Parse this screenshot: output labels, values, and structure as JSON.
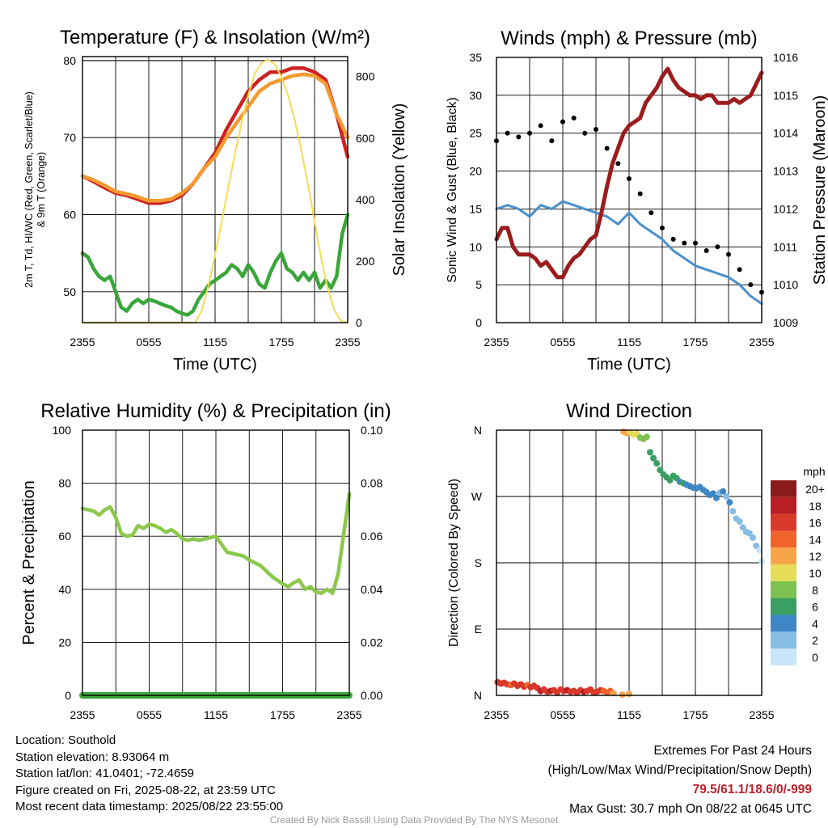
{
  "chart_data": [
    {
      "type": "line",
      "title": "Temperature (F) & Insolation (W/m²)",
      "xlabel": "Time (UTC)",
      "ylabel_lines": [
        "2m T, Td, HI/WC (Red, Green, Scarlet/Blue)",
        "& 9m T (Orange)"
      ],
      "y2label": "Solar Insolation (Yellow)",
      "x_ticks": [
        "2355",
        "0555",
        "1155",
        "1755",
        "2355"
      ],
      "x_hours_range": [
        0,
        24
      ],
      "ylim": [
        46,
        80.5
      ],
      "y_ticks": [
        50,
        60,
        70,
        80
      ],
      "y2lim": [
        0,
        865
      ],
      "y2_ticks": [
        0,
        200,
        400,
        600,
        800
      ],
      "series": [
        {
          "key": "t2m",
          "color": "#cc2222",
          "x": [
            0,
            1,
            2,
            3,
            4,
            5,
            6,
            7,
            8,
            9,
            10,
            11,
            12,
            13,
            14,
            15,
            16,
            17,
            18,
            19,
            20,
            21,
            22,
            23,
            24
          ],
          "y": [
            65,
            64.3,
            63.5,
            62.8,
            62.5,
            62,
            61.5,
            61.5,
            61.8,
            62.5,
            64,
            66,
            68,
            71,
            73.5,
            76,
            77.5,
            78.5,
            78.5,
            79,
            79,
            78.5,
            77.5,
            73,
            67.5
          ]
        },
        {
          "key": "t9m",
          "color": "#f59a30",
          "x": [
            0,
            1,
            2,
            3,
            4,
            5,
            6,
            7,
            8,
            9,
            10,
            11,
            12,
            13,
            14,
            15,
            16,
            17,
            18,
            19,
            20,
            21,
            22,
            23,
            24
          ],
          "y": [
            65,
            64.5,
            63.8,
            63,
            62.7,
            62.3,
            61.8,
            61.8,
            62,
            62.8,
            64,
            66,
            67.5,
            70,
            72,
            74,
            76,
            77,
            77.5,
            78,
            78.2,
            78,
            77,
            73,
            70
          ]
        },
        {
          "key": "dewpoint",
          "color": "#3aa63a",
          "x": [
            0,
            0.5,
            1,
            1.5,
            2,
            2.5,
            3,
            3.5,
            4,
            4.5,
            5,
            5.5,
            6,
            6.5,
            7,
            7.5,
            8,
            8.5,
            9,
            9.5,
            10,
            10.5,
            11,
            11.5,
            12,
            12.5,
            13,
            13.5,
            14,
            14.5,
            15,
            15.5,
            16,
            16.5,
            17,
            17.5,
            18,
            18.5,
            19,
            19.5,
            20,
            20.5,
            21,
            21.5,
            22,
            22.5,
            23,
            23.5,
            24
          ],
          "y": [
            55,
            54.5,
            53,
            52,
            51.5,
            52,
            50,
            48,
            47.5,
            48.5,
            49,
            48.5,
            49,
            48.8,
            48.5,
            48.2,
            48,
            47.5,
            47.2,
            47,
            47.5,
            49,
            50,
            51,
            51.5,
            52,
            52.5,
            53.5,
            53,
            52,
            53.5,
            52.5,
            51,
            50.5,
            52.5,
            54,
            55,
            53,
            52.5,
            51.5,
            52.5,
            51.5,
            52.5,
            50.5,
            51.5,
            50.5,
            52,
            57.5,
            60
          ]
        },
        {
          "key": "insolation",
          "color": "#f5dc55",
          "axis": "y2",
          "x": [
            0,
            10.2,
            10.8,
            11.4,
            12,
            12.6,
            13.2,
            13.8,
            14.4,
            15,
            15.6,
            16.2,
            16.8,
            17.4,
            18,
            18.6,
            19.2,
            19.8,
            20.4,
            21,
            21.6,
            22.2,
            22.8,
            23.4,
            24
          ],
          "y": [
            0,
            0,
            40,
            120,
            220,
            330,
            440,
            550,
            650,
            740,
            810,
            845,
            855,
            840,
            800,
            740,
            660,
            560,
            450,
            330,
            210,
            110,
            40,
            5,
            0
          ]
        }
      ]
    },
    {
      "type": "scatter",
      "title": "Winds (mph) & Pressure (mb)",
      "xlabel": "Time (UTC)",
      "ylabel": "Sonic Wind & Gust (Blue, Black)",
      "y2label": "Station Pressure (Maroon)",
      "x_ticks": [
        "2355",
        "0555",
        "1155",
        "1755",
        "2355"
      ],
      "x_hours_range": [
        0,
        24
      ],
      "ylim": [
        0,
        35
      ],
      "y_ticks": [
        0,
        5,
        10,
        15,
        20,
        25,
        30,
        35
      ],
      "y2lim": [
        1009,
        1016
      ],
      "y2_ticks": [
        1009,
        1010,
        1011,
        1012,
        1013,
        1014,
        1015,
        1016
      ],
      "series": [
        {
          "key": "wind",
          "color": "#4a90cc",
          "x": [
            0,
            1,
            2,
            3,
            4,
            5,
            6,
            7,
            8,
            9,
            10,
            11,
            12,
            13,
            14,
            15,
            16,
            17,
            18,
            19,
            20,
            21,
            22,
            23,
            24
          ],
          "y": [
            15,
            15.5,
            15,
            14,
            15.5,
            15,
            16,
            15.5,
            15,
            14.5,
            14,
            13,
            14.5,
            13,
            12,
            11,
            9.5,
            8.5,
            7.5,
            7,
            6.5,
            6,
            5,
            3.5,
            2.5
          ]
        },
        {
          "key": "gust",
          "color": "#000000",
          "x": [
            0,
            1,
            2,
            3,
            4,
            5,
            6,
            7,
            8,
            9,
            10,
            11,
            12,
            13,
            14,
            15,
            16,
            17,
            18,
            19,
            20,
            21,
            22,
            23,
            24
          ],
          "y": [
            24,
            25,
            24.5,
            25,
            26,
            24,
            26.5,
            27,
            25,
            25.5,
            23,
            21,
            19,
            17,
            14.5,
            12.5,
            11,
            10.5,
            10.5,
            9.5,
            10,
            9,
            7,
            5,
            4
          ]
        },
        {
          "key": "pressure",
          "color": "#9b1c1c",
          "axis": "y2",
          "x": [
            0,
            0.5,
            1,
            1.5,
            2,
            2.5,
            3,
            3.5,
            4,
            4.5,
            5,
            5.5,
            6,
            6.5,
            7,
            7.5,
            8,
            8.5,
            9,
            9.5,
            10,
            10.5,
            11,
            11.5,
            12,
            12.5,
            13,
            13.5,
            14,
            14.5,
            15,
            15.5,
            16,
            16.5,
            17,
            17.5,
            18,
            18.5,
            19,
            19.5,
            20,
            20.5,
            21,
            21.5,
            22,
            22.5,
            23,
            23.5,
            24
          ],
          "y": [
            1011.2,
            1011.5,
            1011.5,
            1011,
            1010.8,
            1010.8,
            1010.8,
            1010.7,
            1010.5,
            1010.6,
            1010.4,
            1010.2,
            1010.2,
            1010.5,
            1010.7,
            1010.8,
            1011,
            1011.2,
            1011.3,
            1011.9,
            1012.6,
            1013.2,
            1013.6,
            1014.0,
            1014.2,
            1014.3,
            1014.4,
            1014.8,
            1015.0,
            1015.2,
            1015.5,
            1015.7,
            1015.4,
            1015.2,
            1015.1,
            1015.0,
            1015.0,
            1014.9,
            1015.0,
            1015.0,
            1014.8,
            1014.8,
            1014.8,
            1014.9,
            1014.8,
            1014.9,
            1015.0,
            1015.3,
            1015.6
          ]
        }
      ]
    },
    {
      "type": "line",
      "title": "Relative Humidity (%) & Precipitation (in)",
      "xlabel": "",
      "ylabel": "Percent & Precipitation",
      "x_ticks": [
        "2355",
        "0555",
        "1155",
        "1755",
        "2355"
      ],
      "x_hours_range": [
        0,
        24
      ],
      "ylim": [
        0,
        100
      ],
      "y_ticks": [
        0,
        20,
        40,
        60,
        80,
        100
      ],
      "y2lim": [
        0,
        0.1
      ],
      "y2_ticks": [
        "0.00",
        "0.02",
        "0.04",
        "0.06",
        "0.08",
        "0.10"
      ],
      "series": [
        {
          "key": "rh",
          "color": "#8cc84b",
          "x": [
            0,
            0.5,
            1,
            1.5,
            2,
            2.5,
            3,
            3.5,
            4,
            4.5,
            5,
            5.5,
            6,
            6.5,
            7,
            7.5,
            8,
            8.5,
            9,
            9.5,
            10,
            10.5,
            11,
            11.5,
            12,
            12.5,
            13,
            13.5,
            14,
            14.5,
            15,
            15.5,
            16,
            16.5,
            17,
            17.5,
            18,
            18.5,
            19,
            19.5,
            20,
            20.5,
            21,
            21.5,
            22,
            22.5,
            23,
            23.5,
            24
          ],
          "y": [
            70.5,
            70,
            69.5,
            68,
            70,
            71,
            67,
            61,
            60,
            60.5,
            64,
            63,
            64.5,
            64,
            63,
            61.5,
            62.5,
            61,
            59,
            58.5,
            59,
            58.5,
            59,
            59.5,
            60,
            57,
            54,
            53.5,
            53,
            52.5,
            51,
            50,
            49,
            47,
            45,
            43.5,
            42,
            41,
            42.5,
            43.5,
            40,
            41,
            39,
            38.5,
            40,
            38.5,
            46,
            61,
            76
          ]
        },
        {
          "key": "precip",
          "color": "#3aa63a",
          "x": [
            0,
            24
          ],
          "y": [
            0,
            0
          ]
        }
      ]
    },
    {
      "type": "scatter",
      "title": "Wind Direction",
      "xlabel": "",
      "ylabel": "Direction (Colored By Speed)",
      "x_ticks": [
        "2355",
        "0555",
        "1155",
        "1755",
        "2355"
      ],
      "x_hours_range": [
        0,
        24
      ],
      "y_ticks": [
        "N",
        "E",
        "S",
        "W",
        "N"
      ],
      "ylim": [
        0,
        360
      ],
      "legend": {
        "title": "mph",
        "labels": [
          "20+",
          "18",
          "16",
          "14",
          "12",
          "10",
          "8",
          "6",
          "4",
          "2",
          "0"
        ],
        "colors": [
          "#8b1a1a",
          "#b81f25",
          "#d8392b",
          "#f0642b",
          "#f8a54a",
          "#e6dc55",
          "#7cc152",
          "#3a9f62",
          "#3f86c6",
          "#86bde5",
          "#c8e6f8"
        ]
      },
      "points": {
        "x": [
          0.1,
          0.4,
          0.7,
          1.0,
          1.3,
          1.6,
          1.9,
          2.2,
          2.5,
          2.8,
          3.1,
          3.4,
          3.7,
          4.0,
          4.3,
          4.6,
          4.9,
          5.2,
          5.5,
          5.8,
          6.1,
          6.4,
          6.7,
          7.0,
          7.3,
          7.6,
          7.9,
          8.2,
          8.5,
          8.8,
          9.1,
          9.4,
          9.7,
          10.0,
          10.3,
          10.6,
          11.4,
          12.0,
          11.5,
          11.8,
          12.1,
          12.4,
          12.7,
          13.0,
          13.3,
          13.6,
          13.9,
          14.2,
          14.5,
          14.8,
          15.1,
          15.4,
          15.7,
          16.0,
          16.3,
          16.6,
          16.9,
          17.2,
          17.5,
          17.8,
          18.1,
          18.4,
          18.7,
          19.0,
          19.3,
          19.6,
          19.9,
          20.2,
          20.5,
          20.8,
          21.1,
          21.4,
          21.7,
          22.0,
          22.3,
          22.6,
          22.9,
          23.2,
          23.5,
          23.8,
          24.0
        ],
        "y": [
          18,
          16,
          17,
          15,
          14,
          16,
          13,
          15,
          12,
          14,
          11,
          13,
          10,
          6,
          8,
          5,
          6,
          7,
          4,
          8,
          6,
          7,
          5,
          6,
          4,
          7,
          5,
          6,
          8,
          4,
          5,
          7,
          6,
          4,
          6,
          3,
          1,
          2,
          358,
          356,
          357,
          354,
          355,
          350,
          348,
          351,
          330,
          322,
          315,
          306,
          300,
          296,
          292,
          298,
          295,
          290,
          288,
          286,
          284,
          282,
          281,
          283,
          279,
          276,
          272,
          274,
          268,
          275,
          277,
          270,
          262,
          250,
          240,
          236,
          228,
          222,
          220,
          214,
          203,
          197,
          182
        ],
        "speed": [
          16,
          17,
          16,
          16,
          15,
          16,
          16,
          17,
          16,
          15,
          16,
          17,
          16,
          18,
          17,
          17,
          18,
          17,
          16,
          17,
          17,
          18,
          16,
          17,
          16,
          17,
          18,
          16,
          17,
          16,
          17,
          16,
          15,
          15,
          14,
          13,
          13,
          12,
          12,
          12,
          10,
          11,
          10,
          9,
          9,
          8,
          7,
          7,
          6,
          6,
          6,
          7,
          6,
          6,
          6,
          5,
          6,
          5,
          5,
          5,
          4,
          4,
          5,
          4,
          4,
          4,
          4,
          3,
          4,
          3,
          4,
          3,
          2,
          3,
          2,
          2,
          2,
          2,
          2,
          1,
          1
        ]
      }
    }
  ],
  "info": {
    "location": "Location: Southold",
    "elevation": "Station elevation: 8.93064 m",
    "latlon": "Station lat/lon: 41.0401; -72.4659",
    "created": "Figure created on Fri, 2025-08-22, at 23:59 UTC",
    "recent": "Most recent data timestamp: 2025/08/22 23:55:00"
  },
  "extremes": {
    "title": "Extremes For Past 24 Hours",
    "subtitle": "(High/Low/Max Wind/Precipitation/Snow Depth)",
    "values": "79.5/61.1/18.6/0/-999",
    "max_gust": "Max Gust: 30.7 mph On 08/22 at 0645 UTC"
  },
  "credit": "Created By Nick Bassill Using Data Provided By The NYS Mesonet"
}
